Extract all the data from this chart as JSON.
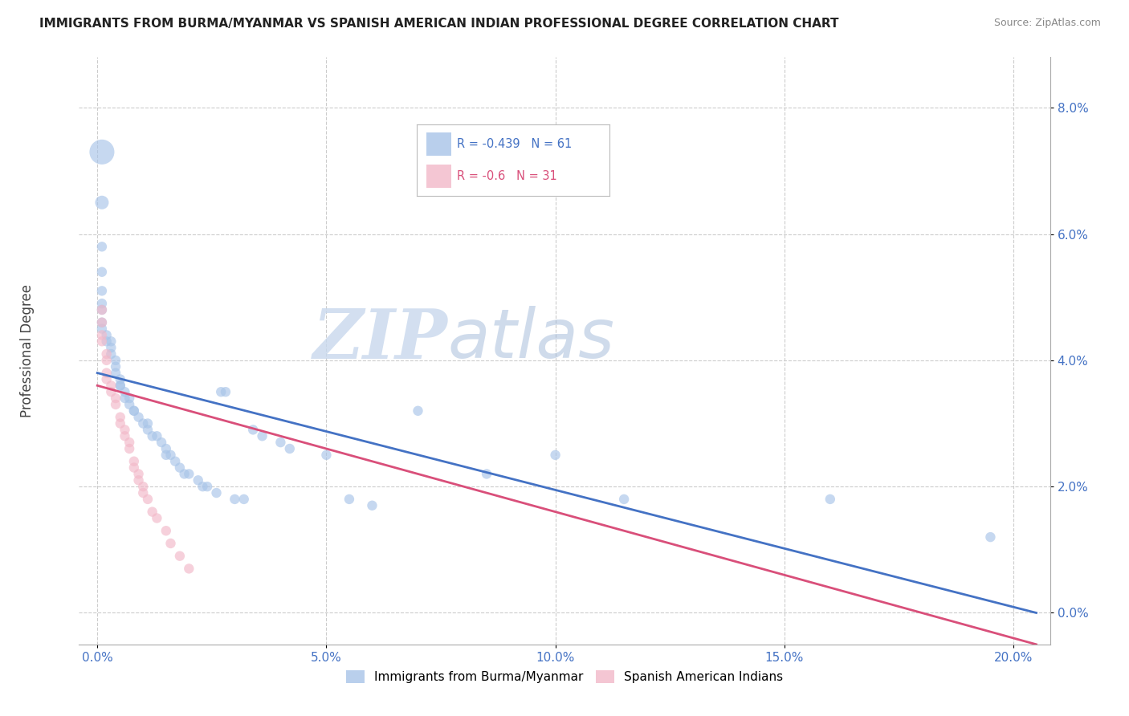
{
  "title": "IMMIGRANTS FROM BURMA/MYANMAR VS SPANISH AMERICAN INDIAN PROFESSIONAL DEGREE CORRELATION CHART",
  "source": "Source: ZipAtlas.com",
  "xlabel_ticks": [
    "0.0%",
    "5.0%",
    "10.0%",
    "15.0%",
    "20.0%"
  ],
  "xlabel_tick_vals": [
    0.0,
    0.05,
    0.1,
    0.15,
    0.2
  ],
  "ylabel_ticks": [
    "0.0%",
    "2.0%",
    "4.0%",
    "6.0%",
    "8.0%"
  ],
  "ylabel_tick_vals": [
    0.0,
    0.02,
    0.04,
    0.06,
    0.08
  ],
  "xlim": [
    -0.004,
    0.208
  ],
  "ylim": [
    -0.005,
    0.088
  ],
  "ylabel": "Professional Degree",
  "legend_blue_label": "Immigrants from Burma/Myanmar",
  "legend_pink_label": "Spanish American Indians",
  "R_blue": -0.439,
  "N_blue": 61,
  "R_pink": -0.6,
  "N_pink": 31,
  "blue_color": "#a8c4e8",
  "pink_color": "#f2b8c8",
  "blue_line_color": "#4472c4",
  "pink_line_color": "#d94f7a",
  "blue_scatter": [
    [
      0.001,
      0.073
    ],
    [
      0.001,
      0.065
    ],
    [
      0.001,
      0.058
    ],
    [
      0.001,
      0.054
    ],
    [
      0.001,
      0.051
    ],
    [
      0.001,
      0.049
    ],
    [
      0.001,
      0.048
    ],
    [
      0.001,
      0.046
    ],
    [
      0.001,
      0.045
    ],
    [
      0.002,
      0.044
    ],
    [
      0.002,
      0.043
    ],
    [
      0.003,
      0.043
    ],
    [
      0.003,
      0.042
    ],
    [
      0.003,
      0.041
    ],
    [
      0.004,
      0.04
    ],
    [
      0.004,
      0.039
    ],
    [
      0.004,
      0.038
    ],
    [
      0.005,
      0.037
    ],
    [
      0.005,
      0.036
    ],
    [
      0.005,
      0.036
    ],
    [
      0.006,
      0.035
    ],
    [
      0.006,
      0.034
    ],
    [
      0.007,
      0.034
    ],
    [
      0.007,
      0.033
    ],
    [
      0.008,
      0.032
    ],
    [
      0.008,
      0.032
    ],
    [
      0.009,
      0.031
    ],
    [
      0.01,
      0.03
    ],
    [
      0.011,
      0.03
    ],
    [
      0.011,
      0.029
    ],
    [
      0.012,
      0.028
    ],
    [
      0.013,
      0.028
    ],
    [
      0.014,
      0.027
    ],
    [
      0.015,
      0.026
    ],
    [
      0.015,
      0.025
    ],
    [
      0.016,
      0.025
    ],
    [
      0.017,
      0.024
    ],
    [
      0.018,
      0.023
    ],
    [
      0.019,
      0.022
    ],
    [
      0.02,
      0.022
    ],
    [
      0.022,
      0.021
    ],
    [
      0.023,
      0.02
    ],
    [
      0.024,
      0.02
    ],
    [
      0.026,
      0.019
    ],
    [
      0.027,
      0.035
    ],
    [
      0.028,
      0.035
    ],
    [
      0.03,
      0.018
    ],
    [
      0.032,
      0.018
    ],
    [
      0.034,
      0.029
    ],
    [
      0.036,
      0.028
    ],
    [
      0.04,
      0.027
    ],
    [
      0.042,
      0.026
    ],
    [
      0.05,
      0.025
    ],
    [
      0.055,
      0.018
    ],
    [
      0.06,
      0.017
    ],
    [
      0.07,
      0.032
    ],
    [
      0.085,
      0.022
    ],
    [
      0.1,
      0.025
    ],
    [
      0.115,
      0.018
    ],
    [
      0.16,
      0.018
    ],
    [
      0.195,
      0.012
    ]
  ],
  "blue_sizes": [
    500,
    150,
    80,
    80,
    80,
    80,
    80,
    80,
    80,
    80,
    80,
    80,
    80,
    80,
    80,
    80,
    80,
    80,
    80,
    80,
    80,
    80,
    80,
    80,
    80,
    80,
    80,
    80,
    80,
    80,
    80,
    80,
    80,
    80,
    80,
    80,
    80,
    80,
    80,
    80,
    80,
    80,
    80,
    80,
    80,
    80,
    80,
    80,
    80,
    80,
    80,
    80,
    80,
    80,
    80,
    80,
    80,
    80,
    80,
    80,
    80
  ],
  "pink_scatter": [
    [
      0.001,
      0.048
    ],
    [
      0.001,
      0.046
    ],
    [
      0.001,
      0.044
    ],
    [
      0.001,
      0.043
    ],
    [
      0.002,
      0.041
    ],
    [
      0.002,
      0.04
    ],
    [
      0.002,
      0.038
    ],
    [
      0.002,
      0.037
    ],
    [
      0.003,
      0.036
    ],
    [
      0.003,
      0.035
    ],
    [
      0.004,
      0.034
    ],
    [
      0.004,
      0.033
    ],
    [
      0.005,
      0.031
    ],
    [
      0.005,
      0.03
    ],
    [
      0.006,
      0.029
    ],
    [
      0.006,
      0.028
    ],
    [
      0.007,
      0.027
    ],
    [
      0.007,
      0.026
    ],
    [
      0.008,
      0.024
    ],
    [
      0.008,
      0.023
    ],
    [
      0.009,
      0.022
    ],
    [
      0.009,
      0.021
    ],
    [
      0.01,
      0.02
    ],
    [
      0.01,
      0.019
    ],
    [
      0.011,
      0.018
    ],
    [
      0.012,
      0.016
    ],
    [
      0.013,
      0.015
    ],
    [
      0.015,
      0.013
    ],
    [
      0.016,
      0.011
    ],
    [
      0.018,
      0.009
    ],
    [
      0.02,
      0.007
    ]
  ],
  "pink_sizes": [
    80,
    80,
    80,
    80,
    80,
    80,
    80,
    80,
    80,
    80,
    80,
    80,
    80,
    80,
    80,
    80,
    80,
    80,
    80,
    80,
    80,
    80,
    80,
    80,
    80,
    80,
    80,
    80,
    80,
    80,
    80
  ],
  "blue_line_x": [
    0.0,
    0.205
  ],
  "blue_line_y": [
    0.038,
    0.0
  ],
  "pink_line_x": [
    0.0,
    0.205
  ],
  "pink_line_y": [
    0.036,
    -0.005
  ],
  "watermark_zip": "ZIP",
  "watermark_atlas": "atlas",
  "background_color": "#ffffff",
  "grid_color": "#cccccc"
}
